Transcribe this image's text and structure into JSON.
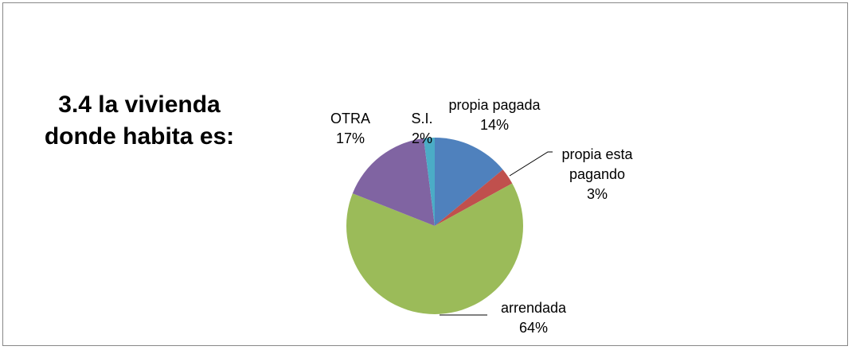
{
  "chart_data": {
    "type": "pie",
    "title": "3.4 la vivienda donde habita es:",
    "categories": [
      "propia pagada",
      "propia esta pagando",
      "arrendada",
      "OTRA",
      "S.I."
    ],
    "values": [
      14,
      3,
      64,
      17,
      2
    ],
    "value_labels": [
      "14%",
      "3%",
      "64%",
      "17%",
      "2%"
    ],
    "colors": [
      "#4f81bd",
      "#c0504d",
      "#9bbb59",
      "#8064a2",
      "#4bacc6"
    ]
  }
}
